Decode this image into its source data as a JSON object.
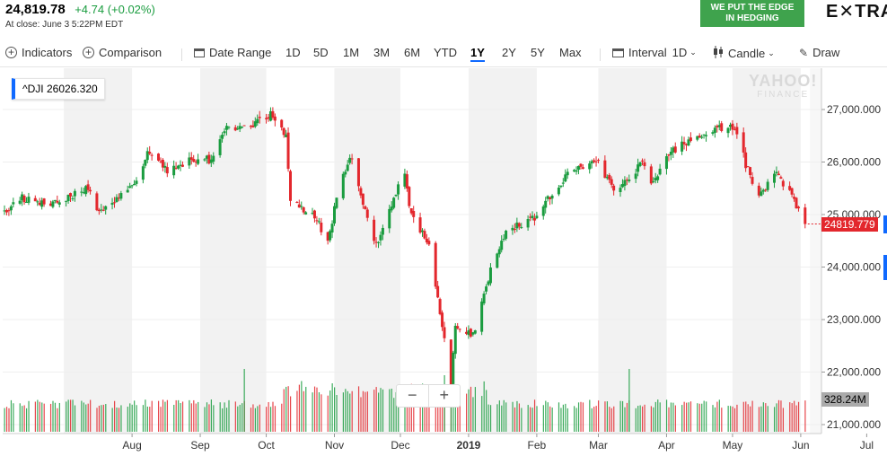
{
  "header": {
    "price": "24,819.78",
    "change": "+4.74 (+0.02%)",
    "close_note": "At close: June 3 5:22PM EDT"
  },
  "ad": {
    "line1": "WE PUT THE EDGE",
    "line2": "IN HEDGING",
    "brand": "E✕TRA"
  },
  "toolbar": {
    "indicators": "Indicators",
    "comparison": "Comparison",
    "date_range": "Date Range",
    "ranges": [
      "1D",
      "5D",
      "1M",
      "3M",
      "6M",
      "YTD",
      "1Y",
      "2Y",
      "5Y",
      "Max"
    ],
    "active_range": "1Y",
    "interval": "Interval",
    "interval_value": "1D",
    "chart_type": "Candle",
    "draw": "Draw"
  },
  "ticker_box": "^DJI  26026.320",
  "watermark": {
    "top": "YAHOO!",
    "bottom": "FINANCE"
  },
  "price_tag": "24819.779",
  "volume_tag": "328.24M",
  "zoom": {
    "minus": "−",
    "plus": "+"
  },
  "colors": {
    "up": "#1a9c3f",
    "down": "#e3272d",
    "accent": "#0f69ff",
    "band": "#f2f2f2"
  },
  "chart_data": {
    "type": "candlestick",
    "symbol": "^DJI",
    "range": "1Y",
    "interval": "1D",
    "ylim": [
      20800,
      27700
    ],
    "y_ticks": [
      27000,
      26000,
      25000,
      24000,
      23000,
      22000,
      21000
    ],
    "y_tick_labels": [
      "27,000.000",
      "26,000.000",
      "25,000.000",
      "24,000.000",
      "23,000.000",
      "22,000.000",
      "21,000.000"
    ],
    "x_tick_labels": [
      "Aug",
      "Sep",
      "Oct",
      "Nov",
      "Dec",
      "2019",
      "Feb",
      "Mar",
      "Apr",
      "May",
      "Jun",
      "Jul"
    ],
    "shaded_months": [
      "Jul",
      "Sep",
      "Nov",
      "Jan",
      "Mar",
      "May"
    ],
    "anchors": [
      {
        "date": "2018-06-04",
        "close": 25050
      },
      {
        "date": "2018-06-12",
        "close": 25320
      },
      {
        "date": "2018-06-28",
        "close": 25200
      },
      {
        "date": "2018-07-12",
        "close": 25500
      },
      {
        "date": "2018-07-17",
        "close": 25050
      },
      {
        "date": "2018-08-01",
        "close": 25500
      },
      {
        "date": "2018-08-08",
        "close": 26150
      },
      {
        "date": "2018-08-17",
        "close": 25850
      },
      {
        "date": "2018-08-28",
        "close": 26050
      },
      {
        "date": "2018-09-07",
        "close": 26050
      },
      {
        "date": "2018-09-12",
        "close": 26650
      },
      {
        "date": "2018-09-21",
        "close": 26650
      },
      {
        "date": "2018-10-03",
        "close": 26900
      },
      {
        "date": "2018-10-10",
        "close": 26450
      },
      {
        "date": "2018-10-12",
        "close": 25300
      },
      {
        "date": "2018-10-24",
        "close": 24900
      },
      {
        "date": "2018-10-29",
        "close": 24500
      },
      {
        "date": "2018-11-02",
        "close": 25300
      },
      {
        "date": "2018-11-08",
        "close": 26150
      },
      {
        "date": "2018-11-12",
        "close": 25500
      },
      {
        "date": "2018-11-20",
        "close": 24400
      },
      {
        "date": "2018-11-29",
        "close": 25450
      },
      {
        "date": "2018-12-03",
        "close": 25850
      },
      {
        "date": "2018-12-05",
        "close": 25100
      },
      {
        "date": "2018-12-14",
        "close": 24400
      },
      {
        "date": "2018-12-24",
        "close": 21790
      },
      {
        "date": "2018-12-26",
        "close": 22900
      },
      {
        "date": "2019-01-03",
        "close": 22700
      },
      {
        "date": "2019-01-10",
        "close": 23800
      },
      {
        "date": "2019-01-18",
        "close": 24700
      },
      {
        "date": "2019-01-31",
        "close": 24950
      },
      {
        "date": "2019-02-15",
        "close": 25800
      },
      {
        "date": "2019-02-28",
        "close": 26050
      },
      {
        "date": "2019-03-08",
        "close": 25450
      },
      {
        "date": "2019-03-21",
        "close": 25960
      },
      {
        "date": "2019-03-25",
        "close": 25550
      },
      {
        "date": "2019-04-03",
        "close": 26200
      },
      {
        "date": "2019-04-18",
        "close": 26550
      },
      {
        "date": "2019-05-02",
        "close": 26700
      },
      {
        "date": "2019-05-07",
        "close": 25960
      },
      {
        "date": "2019-05-13",
        "close": 25300
      },
      {
        "date": "2019-05-20",
        "close": 25800
      },
      {
        "date": "2019-05-28",
        "close": 25350
      },
      {
        "date": "2019-06-03",
        "close": 24819.78
      }
    ],
    "last_close": 24819.779,
    "last_volume_label": "328.24M",
    "legend_value": 26026.32
  }
}
